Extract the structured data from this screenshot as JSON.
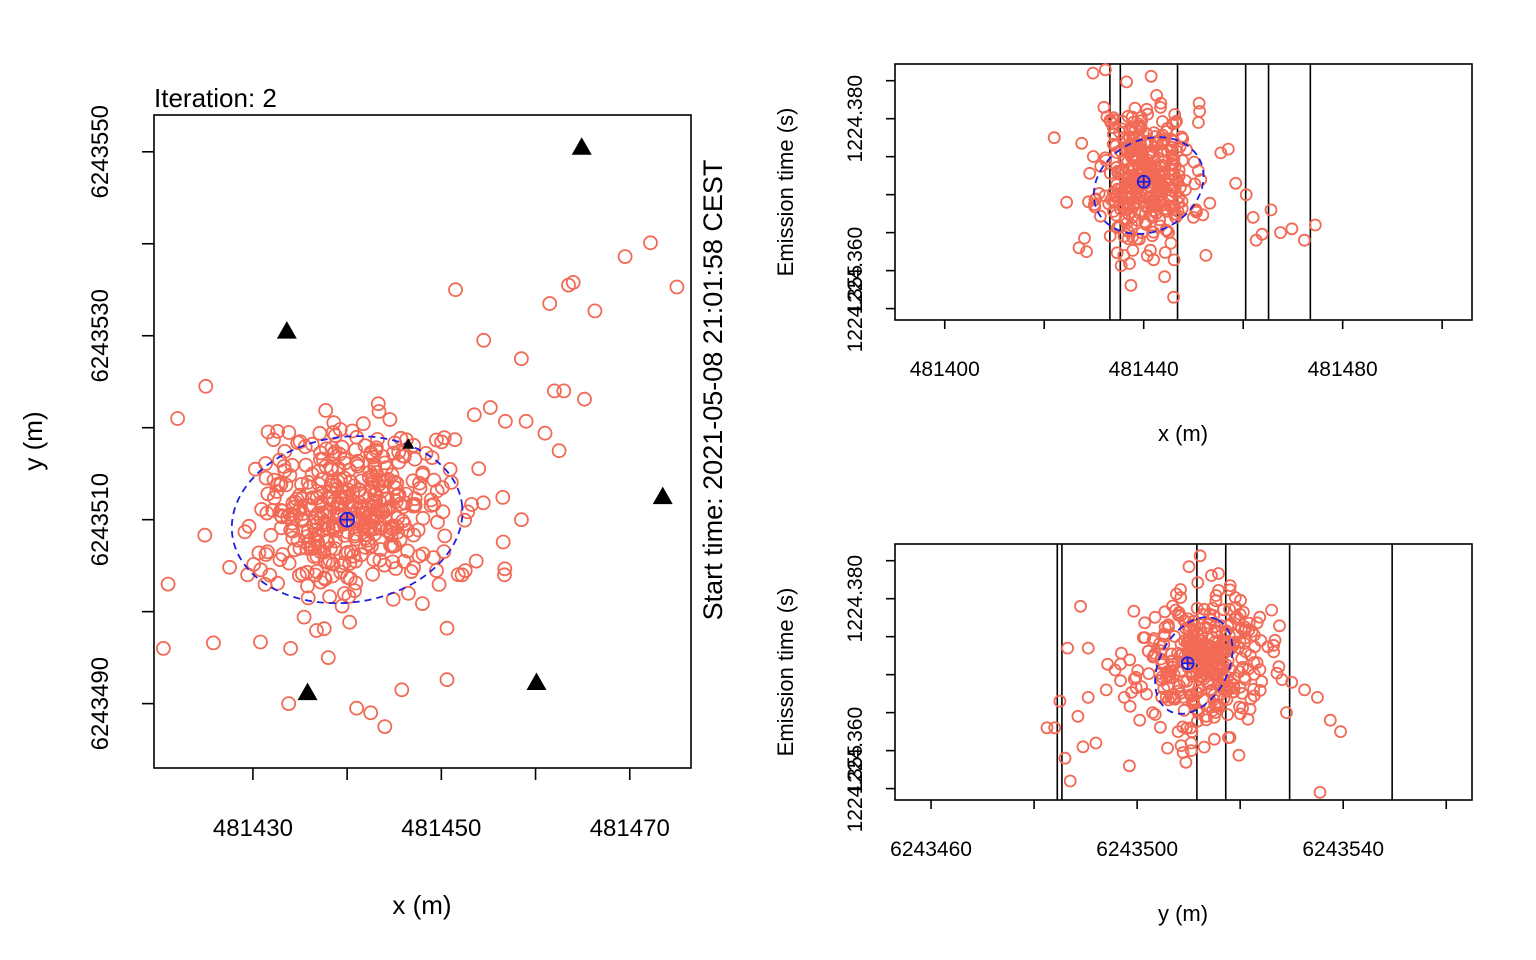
{
  "window": {
    "title": "",
    "iteration_label": "Iteration: 2",
    "start_time_label": "Start time: 2021-05-08 21:01:58 CEST"
  },
  "colors": {
    "points": "#f26a55",
    "ellipse": "#1f1fe0",
    "stations": "#000000",
    "lines": "#000000"
  },
  "chart_data": [
    {
      "type": "scatter",
      "panel": "main",
      "title": "",
      "xlabel": "x (m)",
      "ylabel": "y (m)",
      "xlim": [
        481419.5,
        481476.5
      ],
      "ylim": [
        6243483,
        6243554
      ],
      "xticks": [
        481430,
        481440,
        481450,
        481460,
        481470
      ],
      "xtick_labels": [
        "481430",
        "",
        "481450",
        "",
        "481470"
      ],
      "yticks": [
        6243490,
        6243500,
        6243510,
        6243520,
        6243530,
        6243540,
        6243550
      ],
      "ytick_labels": [
        "6243490",
        "",
        "6243510",
        "",
        "6243530",
        "",
        "6243550"
      ],
      "stations": [
        {
          "x": 481464.9,
          "y": 6243550.5
        },
        {
          "x": 481433.6,
          "y": 6243530.5
        },
        {
          "x": 481473.5,
          "y": 6243512.5
        },
        {
          "x": 481435.8,
          "y": 6243491.2
        },
        {
          "x": 481460.1,
          "y": 6243492.3
        },
        {
          "x": 481446.5,
          "y": 6243518.2
        }
      ],
      "ellipse": {
        "cx": 481440.0,
        "cy": 6243510.0,
        "rx": 12.3,
        "ry": 9.0,
        "rotation_deg": -8
      },
      "center": {
        "x": 481440.0,
        "y": 6243510.0
      },
      "outliers": [
        [
          481451.5,
          6243535.0
        ],
        [
          481454.5,
          6243529.5
        ],
        [
          481458.5,
          6243527.5
        ],
        [
          481461.5,
          6243533.5
        ],
        [
          481463.5,
          6243535.5
        ],
        [
          481464.0,
          6243535.8
        ],
        [
          481466.3,
          6243532.7
        ],
        [
          481469.5,
          6243538.6
        ],
        [
          481472.2,
          6243540.1
        ],
        [
          481475.0,
          6243535.3
        ],
        [
          481462.0,
          6243524.0
        ],
        [
          481463.0,
          6243524.0
        ],
        [
          481465.2,
          6243523.1
        ],
        [
          481456.8,
          6243520.7
        ],
        [
          481459.0,
          6243520.7
        ],
        [
          481461.0,
          6243519.4
        ],
        [
          481462.5,
          6243517.5
        ],
        [
          481453.5,
          6243521.4
        ],
        [
          481455.2,
          6243522.2
        ],
        [
          481458.5,
          6243510.0
        ],
        [
          481421.0,
          6243503.0
        ],
        [
          481422.0,
          6243521.0
        ],
        [
          481425.0,
          6243524.5
        ],
        [
          481420.5,
          6243496.0
        ],
        [
          481425.8,
          6243496.6
        ],
        [
          481430.8,
          6243496.7
        ],
        [
          481433.8,
          6243490.0
        ],
        [
          481434.0,
          6243496.0
        ],
        [
          481438.0,
          6243495.0
        ],
        [
          481441.0,
          6243489.5
        ],
        [
          481444.0,
          6243487.5
        ],
        [
          481442.5,
          6243489.0
        ],
        [
          481445.8,
          6243491.5
        ],
        [
          481450.6,
          6243492.6
        ],
        [
          481450.6,
          6243498.2
        ],
        [
          481446.5,
          6243502.0
        ],
        [
          481452.2,
          6243504.0
        ],
        [
          481453.7,
          6243505.5
        ]
      ],
      "cluster": {
        "cx": 481440.5,
        "cy": 6243511.0,
        "sx": 5.2,
        "sy": 4.6,
        "count": 420,
        "seed": 7
      }
    },
    {
      "type": "scatter",
      "panel": "top-right",
      "xlabel": "x (m)",
      "ylabel": "Emission time (s)",
      "xlim": [
        481390,
        481506
      ],
      "ylim": [
        1224.3535,
        1224.3872
      ],
      "xticks": [
        481400,
        481420,
        481440,
        481460,
        481480,
        481500
      ],
      "xtick_labels": [
        "481400",
        "",
        "481440",
        "",
        "481480",
        ""
      ],
      "yticks": [
        1224.355,
        1224.36,
        1224.365,
        1224.37,
        1224.375,
        1224.38,
        1224.385
      ],
      "ytick_labels": [
        "1224.355",
        "1224.360",
        "",
        "",
        "",
        "1224.380",
        ""
      ],
      "vlines": [
        481433.2,
        481435.3,
        481446.8,
        481460.5,
        481465.1,
        481473.5
      ],
      "ellipse": {
        "cx": 481441.0,
        "cy": 1224.3712,
        "rx": 11.5,
        "ry": 0.006,
        "rotation_deg": -28
      },
      "center": {
        "x": 481440.0,
        "y": 1224.3717
      },
      "outliers": [
        [
          481422.0,
          1224.3775
        ],
        [
          481424.5,
          1224.369
        ],
        [
          481427.0,
          1224.363
        ],
        [
          481428.5,
          1224.3625
        ],
        [
          481429.8,
          1224.386
        ],
        [
          481432.0,
          1224.3815
        ],
        [
          481446.0,
          1224.3565
        ],
        [
          481450.0,
          1224.367
        ],
        [
          481452.5,
          1224.362
        ],
        [
          481455.5,
          1224.3755
        ],
        [
          481457.0,
          1224.376
        ],
        [
          481458.5,
          1224.3715
        ],
        [
          481460.6,
          1224.37
        ],
        [
          481462.0,
          1224.367
        ],
        [
          481462.6,
          1224.364
        ],
        [
          481463.8,
          1224.3648
        ],
        [
          481465.6,
          1224.368
        ],
        [
          481467.5,
          1224.365
        ],
        [
          481469.8,
          1224.3655
        ],
        [
          481472.3,
          1224.364
        ],
        [
          481474.5,
          1224.366
        ],
        [
          481444.2,
          1224.3592
        ],
        [
          481436.0,
          1224.362
        ],
        [
          481451.0,
          1224.3795
        ]
      ],
      "cluster": {
        "cx": 481440.5,
        "cy": 1224.3725,
        "sx": 4.6,
        "sy": 0.0048,
        "count": 360,
        "seed": 11
      }
    },
    {
      "type": "scatter",
      "panel": "bottom-right",
      "xlabel": "y (m)",
      "ylabel": "Emission time (s)",
      "xlim": [
        6243453,
        6243565
      ],
      "ylim": [
        1224.3535,
        1224.3872
      ],
      "xticks": [
        6243460,
        6243480,
        6243500,
        6243520,
        6243540,
        6243560
      ],
      "xtick_labels": [
        "6243460",
        "",
        "6243500",
        "",
        "6243540",
        ""
      ],
      "yticks": [
        1224.355,
        1224.36,
        1224.365,
        1224.37,
        1224.375,
        1224.38,
        1224.385
      ],
      "ytick_labels": [
        "1224.355",
        "1224.360",
        "",
        "",
        "",
        "1224.380",
        ""
      ],
      "vlines": [
        6243484.5,
        6243485.4,
        6243511.6,
        6243517.2,
        6243529.6,
        6243549.5
      ],
      "ellipse": {
        "cx": 6243511.0,
        "cy": 1224.3712,
        "rx": 10.0,
        "ry": 0.0045,
        "rotation_deg": -62
      },
      "center": {
        "x": 6243509.8,
        "y": 1224.3715
      },
      "outliers": [
        [
          6243482.5,
          1224.363
        ],
        [
          6243484.0,
          1224.363
        ],
        [
          6243485.0,
          1224.3665
        ],
        [
          6243486.0,
          1224.359
        ],
        [
          6243487.0,
          1224.356
        ],
        [
          6243488.5,
          1224.3645
        ],
        [
          6243489.5,
          1224.3605
        ],
        [
          6243490.5,
          1224.367
        ],
        [
          6243492.0,
          1224.361
        ],
        [
          6243494.0,
          1224.368
        ],
        [
          6243497.5,
          1224.367
        ],
        [
          6243498.5,
          1224.358
        ],
        [
          6243500.5,
          1224.364
        ],
        [
          6243503.0,
          1224.365
        ],
        [
          6243486.5,
          1224.3735
        ],
        [
          6243489.0,
          1224.379
        ],
        [
          6243490.5,
          1224.3735
        ],
        [
          6243505.0,
          1224.3865
        ],
        [
          6243510.5,
          1224.36
        ],
        [
          6243515.0,
          1224.3615
        ],
        [
          6243524.0,
          1224.3745
        ],
        [
          6243526.5,
          1224.373
        ],
        [
          6243529.0,
          1224.365
        ],
        [
          6243530.0,
          1224.369
        ],
        [
          6243532.5,
          1224.368
        ],
        [
          6243535.0,
          1224.367
        ],
        [
          6243537.5,
          1224.364
        ],
        [
          6243539.5,
          1224.3625
        ],
        [
          6243535.5,
          1224.3545
        ]
      ],
      "cluster": {
        "cx": 6243512.5,
        "cy": 1224.3718,
        "sx": 6.2,
        "sy": 0.0045,
        "count": 360,
        "seed": 23
      }
    }
  ]
}
